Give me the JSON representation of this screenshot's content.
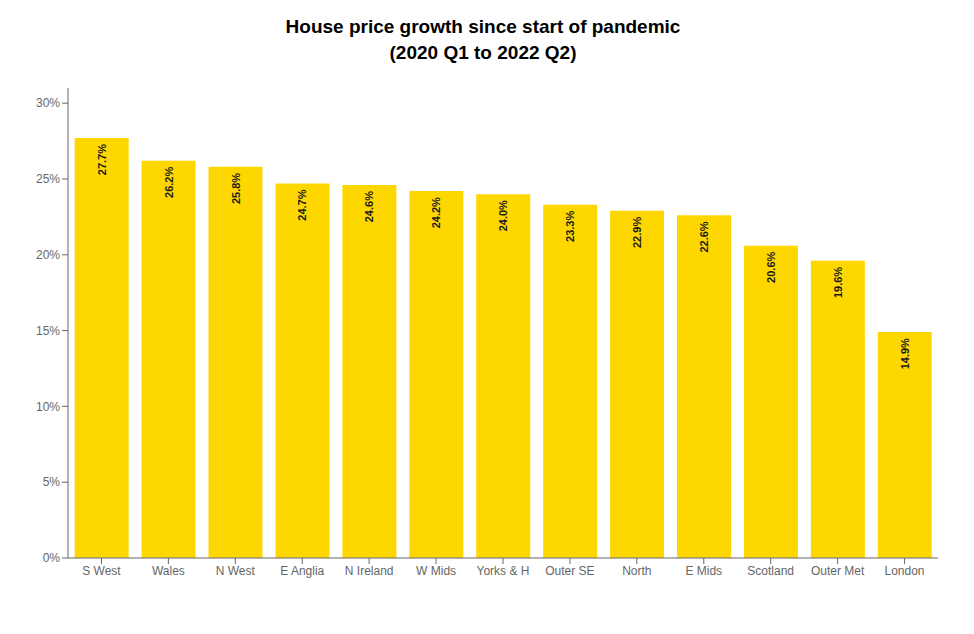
{
  "chart_data": {
    "type": "bar",
    "title": "House price growth since start of pandemic",
    "subtitle": "(2020 Q1 to 2022 Q2)",
    "categories": [
      "S West",
      "Wales",
      "N West",
      "E Anglia",
      "N Ireland",
      "W Mids",
      "Yorks & H",
      "Outer SE",
      "North",
      "E Mids",
      "Scotland",
      "Outer Met",
      "London"
    ],
    "values": [
      27.7,
      26.2,
      25.8,
      24.7,
      24.6,
      24.2,
      24.0,
      23.3,
      22.9,
      22.6,
      20.6,
      19.6,
      14.9
    ],
    "value_labels": [
      "27.7%",
      "26.2%",
      "25.8%",
      "24.7%",
      "24.6%",
      "24.2%",
      "24.0%",
      "23.3%",
      "22.9%",
      "22.6%",
      "20.6%",
      "19.6%",
      "14.9%"
    ],
    "color": "#FFD700",
    "ylim": [
      0,
      31
    ],
    "yticks": [
      {
        "value": 0,
        "label": "0%"
      },
      {
        "value": 5,
        "label": "5%"
      },
      {
        "value": 10,
        "label": "10%"
      },
      {
        "value": 15,
        "label": "15%"
      },
      {
        "value": 20,
        "label": "20%"
      },
      {
        "value": 25,
        "label": "25%"
      },
      {
        "value": 30,
        "label": "30%"
      }
    ],
    "grid": false,
    "data_labels": true
  }
}
